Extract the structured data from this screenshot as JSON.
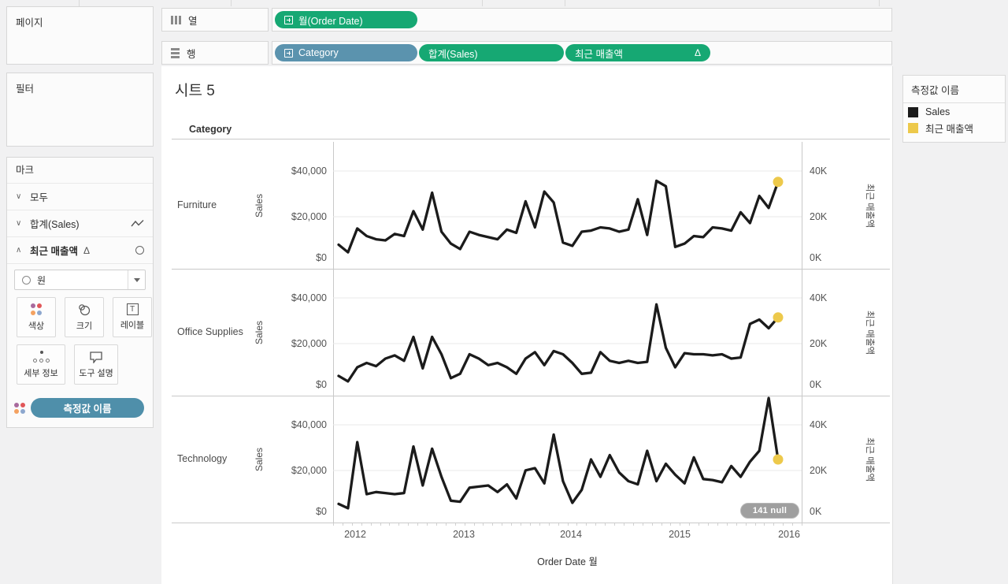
{
  "pages_panel": {
    "title": "페이지"
  },
  "filters_panel": {
    "title": "필터"
  },
  "marks_panel": {
    "title": "마크",
    "cards": [
      {
        "chevron": "∨",
        "label": "모두"
      },
      {
        "chevron": "∨",
        "label": "합계(Sales)",
        "icon": "line-mark-icon"
      },
      {
        "chevron": "∧",
        "label": "최근 매출액",
        "delta": "Δ",
        "icon": "circle-mark-icon"
      }
    ],
    "mark_type_dropdown": {
      "value": "원",
      "icon": "circle-icon"
    },
    "buttons": [
      {
        "label": "색상",
        "icon": "color-icon"
      },
      {
        "label": "크기",
        "icon": "size-icon"
      },
      {
        "label": "레이블",
        "icon": "label-icon"
      },
      {
        "label": "세부 정보",
        "icon": "detail-icon"
      },
      {
        "label": "도구 설명",
        "icon": "tooltip-icon"
      }
    ],
    "color_shelf_pill": "측정값 이름"
  },
  "shelves": {
    "columns": {
      "label": "열",
      "pills": [
        {
          "text": "월(Order Date)",
          "color": "green",
          "expandable": true
        }
      ]
    },
    "rows": {
      "label": "행",
      "pills": [
        {
          "text": "Category",
          "color": "blue",
          "expandable": true
        },
        {
          "text": "합계(Sales)",
          "color": "green"
        },
        {
          "text": "최근 매출액",
          "color": "green",
          "delta": "Δ"
        }
      ]
    }
  },
  "legend": {
    "title": "측정값 이름",
    "items": [
      {
        "label": "Sales",
        "color": "#1b1b1b"
      },
      {
        "label": "최근 매출액",
        "color": "#edc94b"
      }
    ]
  },
  "chart_data": {
    "type": "line",
    "title": "시트 5",
    "panel_header": "Category",
    "line_color": "#1b1b1b",
    "dot_color": "#edc94b",
    "x_axis": {
      "title": "Order Date 월",
      "granularity": "month",
      "tick_labels": [
        "2012",
        "2013",
        "2014",
        "2015",
        "2016"
      ],
      "range": [
        "2012-01",
        "2015-12"
      ]
    },
    "left_y_axis": {
      "title": "Sales",
      "tick_labels": [
        "$40,000",
        "$20,000",
        "$0"
      ],
      "lim": [
        0,
        53000
      ],
      "grid": true
    },
    "right_y_axis": {
      "title": "최근 매출액",
      "tick_labels": [
        "40K",
        "20K",
        "0K"
      ],
      "lim": [
        0,
        53000
      ]
    },
    "panels": [
      {
        "category": "Furniture",
        "series_name": "Sales",
        "sales_monthly_usd": [
          6000,
          2500,
          13500,
          10000,
          8500,
          8000,
          11000,
          10000,
          21500,
          13000,
          30000,
          12000,
          6500,
          4000,
          12000,
          10500,
          9500,
          8500,
          13000,
          11500,
          26000,
          14000,
          30500,
          25500,
          7000,
          5500,
          12000,
          12500,
          14000,
          13500,
          12000,
          13000,
          27000,
          10500,
          35500,
          33000,
          5000,
          6500,
          10000,
          9500,
          14000,
          13500,
          12500,
          21000,
          16000,
          28500,
          23000,
          35000
        ],
        "recent_sales_point": {
          "month": "2015-12",
          "value_usd": 35000
        }
      },
      {
        "category": "Office Supplies",
        "series_name": "Sales",
        "sales_monthly_usd": [
          4000,
          1500,
          8000,
          10000,
          8500,
          12000,
          13500,
          11000,
          22000,
          7500,
          22000,
          14000,
          3000,
          5000,
          14000,
          12000,
          9000,
          10000,
          8000,
          5000,
          12000,
          15000,
          9000,
          15500,
          14000,
          10000,
          5000,
          5500,
          15000,
          11000,
          10000,
          11000,
          10000,
          10500,
          37000,
          17000,
          8000,
          14500,
          14000,
          14000,
          13500,
          14000,
          12000,
          12500,
          28000,
          30000,
          26000,
          31000
        ],
        "recent_sales_point": {
          "month": "2015-12",
          "value_usd": 31000
        }
      },
      {
        "category": "Technology",
        "series_name": "Sales",
        "sales_monthly_usd": [
          3500,
          1500,
          32000,
          8000,
          9000,
          8500,
          8000,
          8500,
          30000,
          12000,
          29000,
          16000,
          5000,
          4500,
          11000,
          11500,
          12000,
          9000,
          12500,
          6000,
          19000,
          20000,
          13000,
          35500,
          14000,
          4000,
          10000,
          24000,
          16000,
          26000,
          18000,
          14000,
          12500,
          28000,
          14000,
          22000,
          17000,
          13000,
          25000,
          15000,
          14500,
          13500,
          21000,
          16000,
          23000,
          28000,
          52500,
          24000
        ],
        "recent_sales_point": {
          "month": "2015-12",
          "value_usd": 24000
        },
        "null_indicator": "141 null"
      }
    ]
  }
}
